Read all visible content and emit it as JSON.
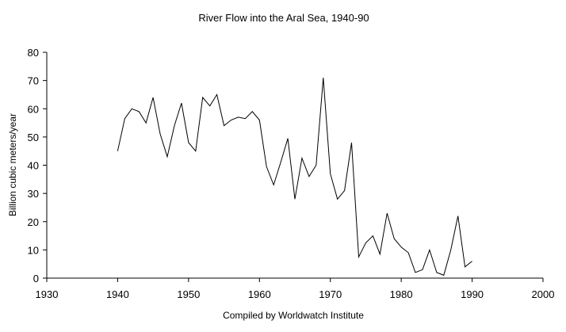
{
  "chart_data": {
    "type": "line",
    "title": "River Flow into the Aral Sea, 1940-90",
    "xlabel": "Compiled by Worldwatch Institute",
    "ylabel": "Billion cubic meters/year",
    "xlim": [
      1930,
      2000
    ],
    "ylim": [
      0,
      80
    ],
    "x_ticks": [
      1930,
      1940,
      1950,
      1960,
      1970,
      1980,
      1990,
      2000
    ],
    "y_ticks": [
      0,
      10,
      20,
      30,
      40,
      50,
      60,
      70,
      80
    ],
    "grid": false,
    "legend": "none",
    "series": [
      {
        "color": "#000000",
        "x": [
          1940,
          1941,
          1942,
          1943,
          1944,
          1945,
          1946,
          1947,
          1948,
          1949,
          1950,
          1951,
          1952,
          1953,
          1954,
          1955,
          1956,
          1957,
          1958,
          1959,
          1960,
          1961,
          1962,
          1963,
          1964,
          1965,
          1966,
          1967,
          1968,
          1969,
          1970,
          1971,
          1972,
          1973,
          1974,
          1975,
          1976,
          1977,
          1978,
          1979,
          1980,
          1981,
          1982,
          1983,
          1984,
          1985,
          1986,
          1987,
          1988,
          1989,
          1990
        ],
        "values": [
          45,
          56.5,
          60,
          59,
          55,
          64,
          51,
          43,
          54,
          62,
          48,
          45,
          64,
          61,
          65,
          54,
          56,
          57,
          56.5,
          59,
          56,
          39.5,
          33,
          41,
          49.5,
          28,
          42.5,
          36,
          40,
          71,
          37,
          28,
          31,
          48,
          7.5,
          12.5,
          15,
          8.5,
          23,
          14,
          11,
          9,
          2,
          3,
          10,
          2,
          1,
          10,
          22,
          4,
          6
        ]
      }
    ]
  }
}
